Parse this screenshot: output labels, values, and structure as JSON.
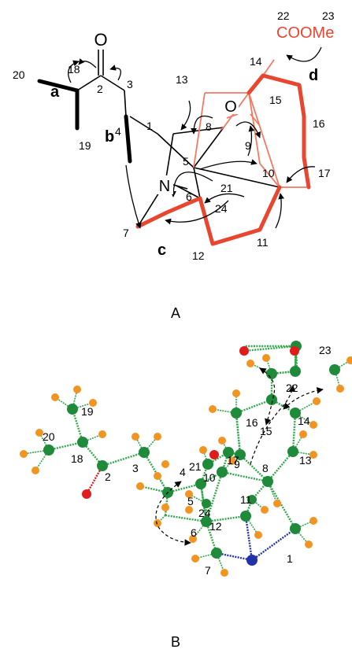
{
  "figure": {
    "panel_a_label": "A",
    "panel_b_label": "B"
  },
  "colors": {
    "black": "#000000",
    "red": "#e8462e",
    "salmon": "#f27a62",
    "green": "#1e8a3a",
    "green_bond": "#2fa84a",
    "orange": "#f29422",
    "oxygen": "#e01b1b",
    "nitrogen": "#2233aa"
  },
  "panel_a": {
    "atoms": {
      "O_ketone": "O",
      "O_bridge": "O",
      "N": "N",
      "ester": "COOMe"
    },
    "bond_labels": {
      "a": "a",
      "b": "b",
      "c": "c",
      "d": "d"
    },
    "numbers": [
      "1",
      "2",
      "3",
      "4",
      "5",
      "6",
      "7",
      "8",
      "9",
      "10",
      "11",
      "12",
      "13",
      "14",
      "15",
      "16",
      "17",
      "18",
      "19",
      "20",
      "21",
      "22",
      "23",
      "24"
    ]
  },
  "panel_b": {
    "numbers": [
      "1",
      "2",
      "3",
      "4",
      "5",
      "6",
      "7",
      "8",
      "9",
      "10",
      "11",
      "12",
      "13",
      "14",
      "15",
      "16",
      "17",
      "18",
      "19",
      "20",
      "21",
      "22",
      "23",
      "24"
    ]
  }
}
